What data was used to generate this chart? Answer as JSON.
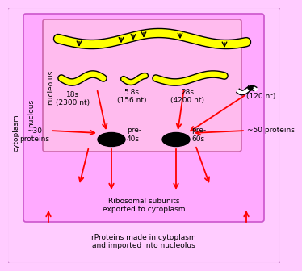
{
  "fig_width": 3.37,
  "fig_height": 3.16,
  "bg_outer": "#ffccff",
  "bg_nucleus": "#ffaaff",
  "bg_nucleolus": "#ffbbee",
  "cytoplasm_label": "cytoplasm",
  "nucleus_label": "nucleus",
  "nucleolus_label": "nucleolus",
  "rna_color": "#ffff00",
  "text_color": "#000000",
  "title_18s": "18s\n(2300 nt)",
  "title_58s": "5.8s\n(156 nt)",
  "title_28s": "28s\n(4200 nt)",
  "title_5s": "5s\n(120 nt)",
  "label_30prot": "~30\nproteins",
  "label_50prot": "~50 proteins",
  "label_pre40s": "pre-\n40s",
  "label_pre60s": "pre-\n60s",
  "label_ribosomal": "Ribosomal subunits\nexported to cytoplasm",
  "label_rproteins": "rProteins made in cytoplasm\nand imported into nucleolus"
}
